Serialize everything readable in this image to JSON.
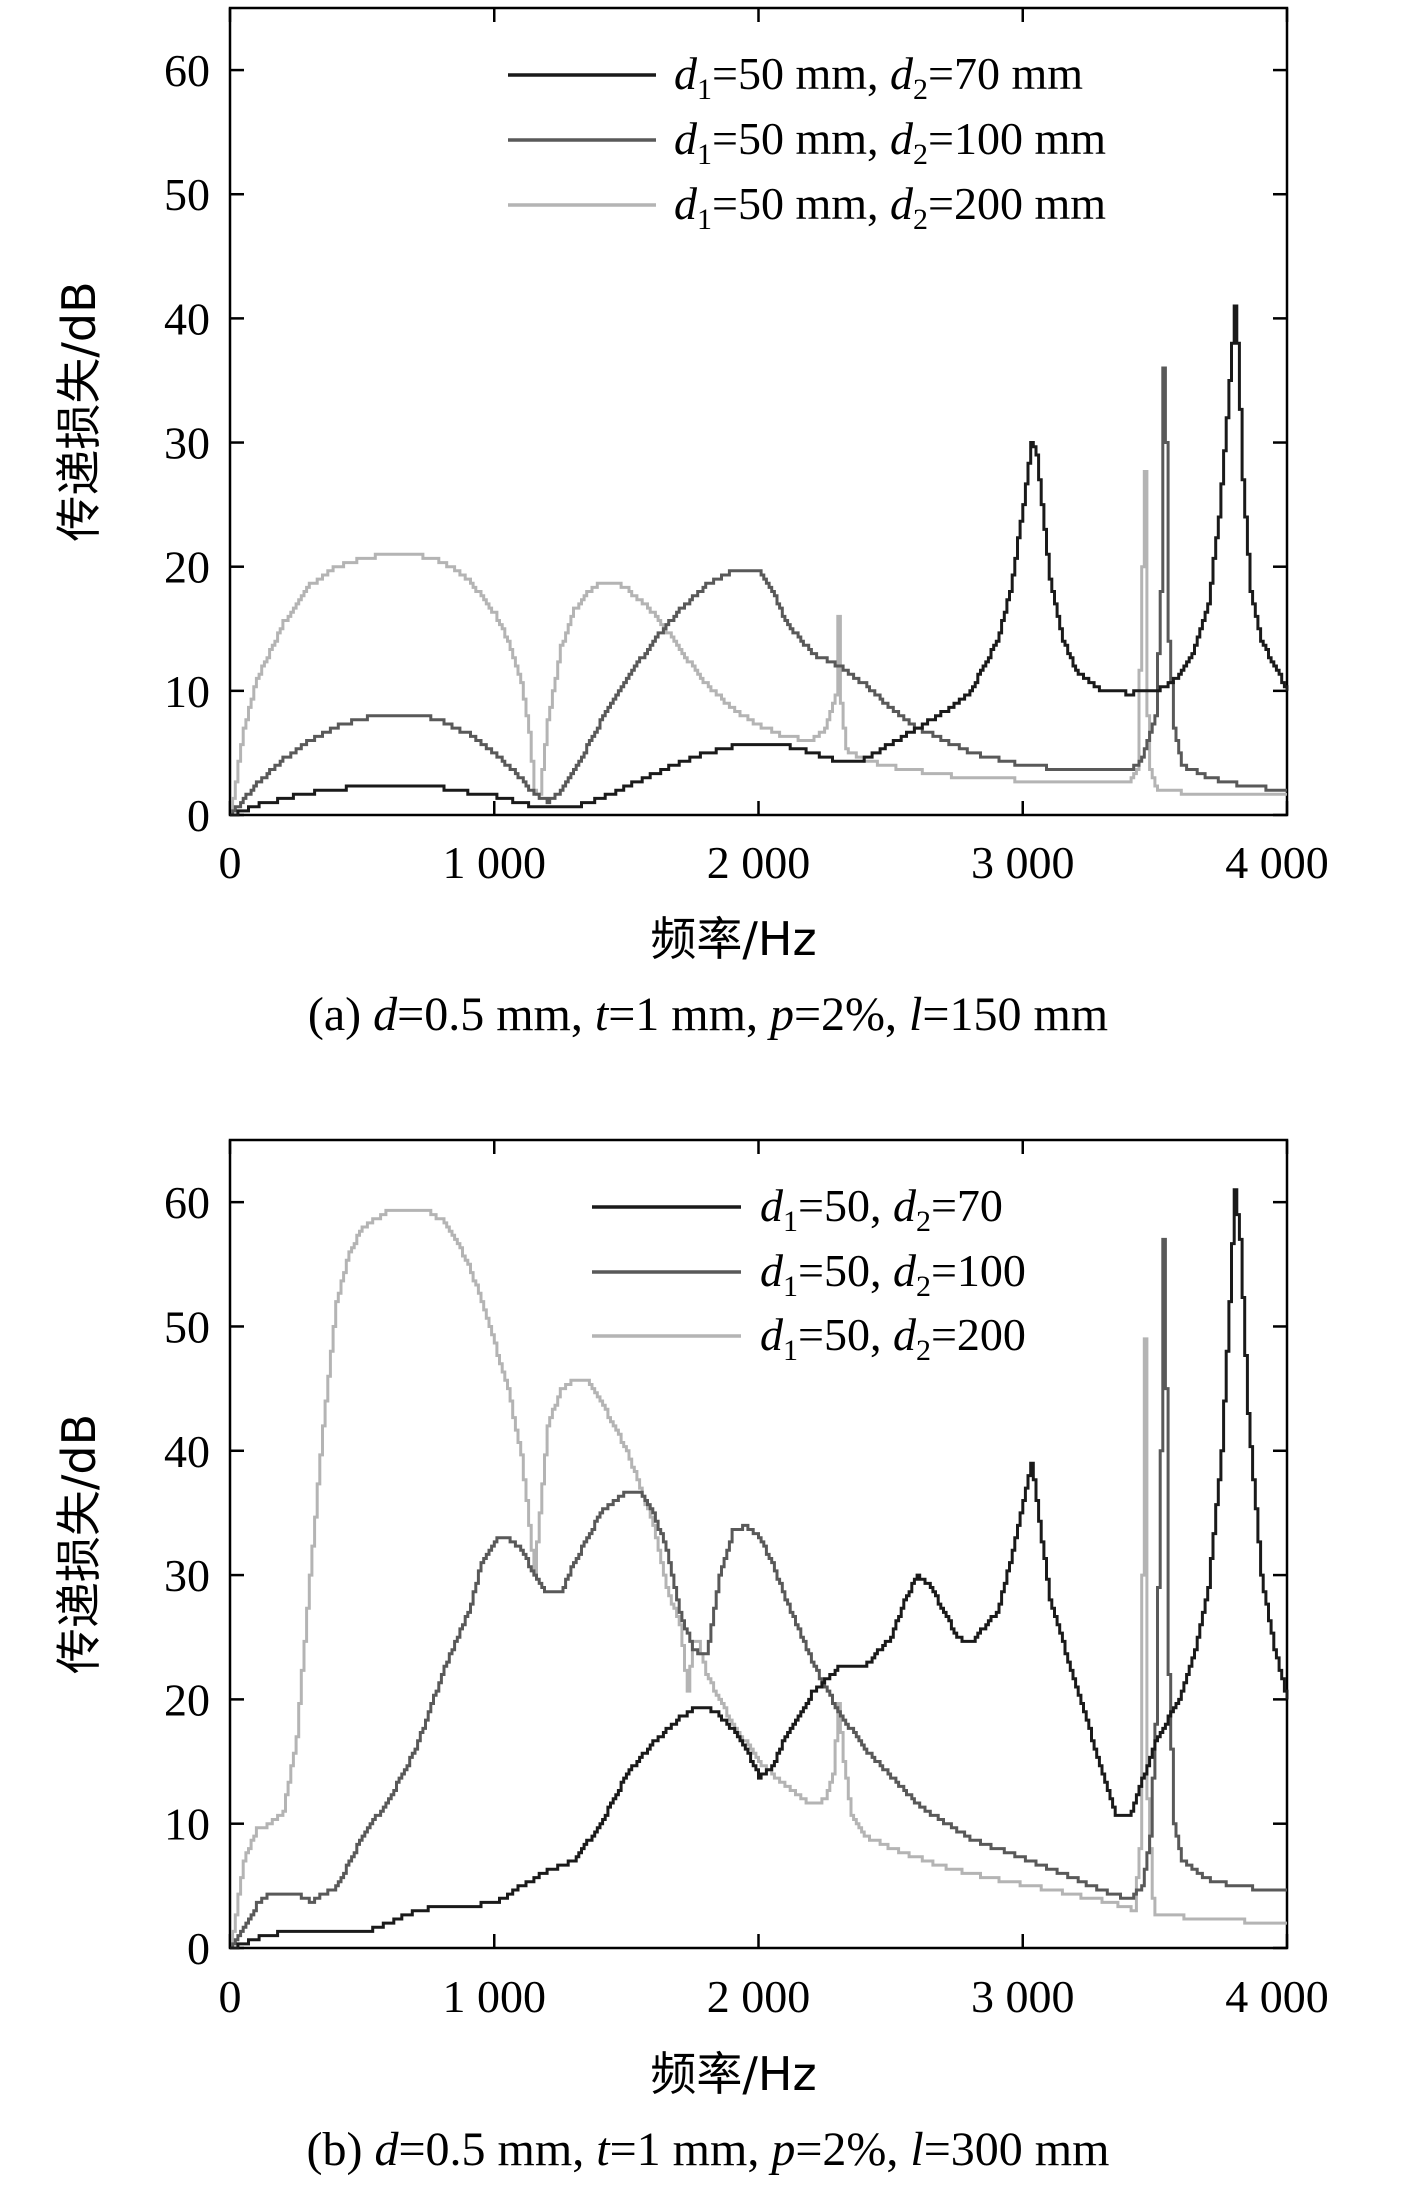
{
  "chart_data": [
    {
      "type": "line",
      "panel": "a",
      "caption": "(a) d=0.5 mm, t=1 mm, p=2%, l=150 mm",
      "caption_parts": [
        {
          "t": "(a) ",
          "i": false
        },
        {
          "t": "d",
          "i": true
        },
        {
          "t": "=0.5 mm, ",
          "i": false
        },
        {
          "t": "t",
          "i": true
        },
        {
          "t": "=1 mm, ",
          "i": false
        },
        {
          "t": "p",
          "i": true
        },
        {
          "t": "=2%, ",
          "i": false
        },
        {
          "t": "l",
          "i": true
        },
        {
          "t": "=150 mm",
          "i": false
        }
      ],
      "xlabel": "频率/Hz",
      "ylabel": "传递损失/dB",
      "xlim": [
        0,
        4000
      ],
      "ylim": [
        0,
        65
      ],
      "xticks": [
        0,
        1000,
        2000,
        3000,
        4000
      ],
      "xtick_labels": [
        "0",
        "1 000",
        "2 000",
        "3 000",
        "4 000"
      ],
      "yticks": [
        0,
        10,
        20,
        30,
        40,
        50,
        60
      ],
      "ytick_labels": [
        "0",
        "10",
        "20",
        "30",
        "40",
        "50",
        "60"
      ],
      "grid": false,
      "legend_position": "top-right",
      "series": [
        {
          "name": "d1=50 mm, d2=70 mm",
          "legend_parts": [
            {
              "t": "d",
              "i": true
            },
            {
              "t": "1",
              "s": true
            },
            {
              "t": "=50 mm, "
            },
            {
              "t": "d",
              "i": true
            },
            {
              "t": "2",
              "s": true
            },
            {
              "t": "=70 mm"
            }
          ],
          "color": "#1a1a1a",
          "x": [
            0,
            100,
            200,
            300,
            400,
            500,
            600,
            700,
            800,
            900,
            1000,
            1100,
            1150,
            1200,
            1250,
            1300,
            1400,
            1500,
            1600,
            1700,
            1800,
            1900,
            2000,
            2100,
            2200,
            2300,
            2400,
            2500,
            2600,
            2700,
            2800,
            2900,
            2950,
            3000,
            3030,
            3050,
            3080,
            3100,
            3150,
            3200,
            3300,
            3400,
            3500,
            3550,
            3600,
            3650,
            3700,
            3740,
            3770,
            3790,
            3800,
            3810,
            3830,
            3860,
            3900,
            3950,
            4000
          ],
          "y": [
            0,
            0.8,
            1.3,
            1.8,
            2.1,
            2.3,
            2.3,
            2.3,
            2.2,
            1.8,
            1.5,
            1.0,
            0.7,
            0.6,
            0.6,
            0.7,
            1.3,
            2.3,
            3.3,
            4.2,
            5.0,
            5.5,
            5.7,
            5.6,
            5.0,
            4.3,
            4.5,
            5.8,
            7.0,
            8.3,
            10.0,
            14.0,
            18.0,
            25.0,
            30.0,
            29.0,
            23.0,
            19.0,
            14.0,
            11.5,
            10.0,
            9.8,
            10.0,
            10.5,
            11.5,
            13.5,
            17.0,
            24.0,
            32.0,
            38.0,
            41.0,
            38.0,
            27.0,
            18.0,
            14.0,
            12.0,
            10.0
          ]
        },
        {
          "name": "d1=50 mm, d2=100 mm",
          "legend_parts": [
            {
              "t": "d",
              "i": true
            },
            {
              "t": "1",
              "s": true
            },
            {
              "t": "=50 mm, "
            },
            {
              "t": "d",
              "i": true
            },
            {
              "t": "2",
              "s": true
            },
            {
              "t": "=100 mm"
            }
          ],
          "color": "#595959",
          "x": [
            0,
            100,
            200,
            300,
            400,
            500,
            600,
            700,
            800,
            900,
            1000,
            1100,
            1150,
            1200,
            1250,
            1300,
            1400,
            1500,
            1600,
            1700,
            1800,
            1900,
            1950,
            2000,
            2050,
            2100,
            2200,
            2300,
            2400,
            2500,
            2600,
            2700,
            2800,
            2900,
            3000,
            3100,
            3200,
            3300,
            3400,
            3450,
            3500,
            3520,
            3530,
            3540,
            3550,
            3570,
            3600,
            3700,
            3800,
            3900,
            4000
          ],
          "y": [
            0,
            2.5,
            4.5,
            6.0,
            7.1,
            7.8,
            8.1,
            8.1,
            7.6,
            6.5,
            4.9,
            2.9,
            1.6,
            1.1,
            2.0,
            3.5,
            7.5,
            11.0,
            14.0,
            16.5,
            18.5,
            19.7,
            19.8,
            19.6,
            18.0,
            15.5,
            13.0,
            12.0,
            10.5,
            8.5,
            7.0,
            6.0,
            5.0,
            4.5,
            4.0,
            3.8,
            3.6,
            3.5,
            3.6,
            4.5,
            8.0,
            18.0,
            36.0,
            30.0,
            14.0,
            7.0,
            4.0,
            3.0,
            2.5,
            2.2,
            2.0
          ]
        },
        {
          "name": "d1=50 mm, d2=200 mm",
          "legend_parts": [
            {
              "t": "d",
              "i": true
            },
            {
              "t": "1",
              "s": true
            },
            {
              "t": "=50 mm, "
            },
            {
              "t": "d",
              "i": true
            },
            {
              "t": "2",
              "s": true
            },
            {
              "t": "=200 mm"
            }
          ],
          "color": "#b4b4b4",
          "x": [
            0,
            50,
            100,
            200,
            300,
            400,
            500,
            600,
            650,
            700,
            800,
            900,
            1000,
            1050,
            1100,
            1130,
            1150,
            1170,
            1200,
            1250,
            1300,
            1350,
            1400,
            1450,
            1500,
            1600,
            1700,
            1800,
            1900,
            2000,
            2100,
            2200,
            2250,
            2290,
            2300,
            2310,
            2330,
            2400,
            2500,
            2700,
            2900,
            3100,
            3300,
            3400,
            3430,
            3450,
            3460,
            3470,
            3480,
            3500,
            3600,
            3800,
            4000
          ],
          "y": [
            0,
            7.0,
            11.0,
            15.5,
            18.5,
            20.0,
            20.7,
            21.0,
            21.0,
            21.0,
            20.4,
            19.0,
            16.2,
            14.0,
            10.5,
            6.5,
            2.0,
            1.5,
            7.5,
            13.5,
            16.5,
            18.0,
            18.8,
            18.7,
            18.2,
            16.3,
            13.3,
            10.5,
            8.5,
            7.2,
            6.3,
            6.0,
            7.0,
            9.5,
            16.0,
            9.0,
            5.2,
            4.4,
            3.9,
            3.2,
            2.9,
            2.7,
            2.5,
            2.5,
            3.5,
            20.0,
            27.8,
            8.0,
            3.5,
            2.2,
            1.8,
            1.6,
            1.5
          ]
        }
      ]
    },
    {
      "type": "line",
      "panel": "b",
      "caption": "(b) d=0.5 mm, t=1 mm, p=2%, l=300 mm",
      "caption_parts": [
        {
          "t": "(b) ",
          "i": false
        },
        {
          "t": "d",
          "i": true
        },
        {
          "t": "=0.5 mm, ",
          "i": false
        },
        {
          "t": "t",
          "i": true
        },
        {
          "t": "=1 mm, ",
          "i": false
        },
        {
          "t": "p",
          "i": true
        },
        {
          "t": "=2%, ",
          "i": false
        },
        {
          "t": "l",
          "i": true
        },
        {
          "t": "=300 mm",
          "i": false
        }
      ],
      "xlabel": "频率/Hz",
      "ylabel": "传递损失/dB",
      "xlim": [
        0,
        4000
      ],
      "ylim": [
        0,
        65
      ],
      "xticks": [
        0,
        1000,
        2000,
        3000,
        4000
      ],
      "xtick_labels": [
        "0",
        "1 000",
        "2 000",
        "3 000",
        "4 000"
      ],
      "yticks": [
        0,
        10,
        20,
        30,
        40,
        50,
        60
      ],
      "ytick_labels": [
        "0",
        "10",
        "20",
        "30",
        "40",
        "50",
        "60"
      ],
      "grid": false,
      "legend_position": "top-right",
      "series": [
        {
          "name": "d1=50, d2=70",
          "legend_parts": [
            {
              "t": "d",
              "i": true
            },
            {
              "t": "1",
              "s": true
            },
            {
              "t": "=50, "
            },
            {
              "t": "d",
              "i": true
            },
            {
              "t": "2",
              "s": true
            },
            {
              "t": "=70"
            }
          ],
          "color": "#1a1a1a",
          "x": [
            0,
            100,
            200,
            300,
            400,
            500,
            600,
            700,
            800,
            900,
            1000,
            1100,
            1200,
            1300,
            1400,
            1500,
            1600,
            1700,
            1750,
            1800,
            1850,
            1900,
            1950,
            2000,
            2050,
            2100,
            2200,
            2300,
            2400,
            2500,
            2550,
            2600,
            2650,
            2700,
            2750,
            2800,
            2900,
            2950,
            3000,
            3030,
            3050,
            3100,
            3200,
            3300,
            3350,
            3400,
            3450,
            3500,
            3600,
            3650,
            3700,
            3750,
            3780,
            3800,
            3820,
            3850,
            3900,
            3950,
            4000
          ],
          "y": [
            0,
            0.8,
            1.3,
            1.3,
            1.2,
            1.2,
            2.0,
            3.0,
            3.4,
            3.4,
            3.6,
            5.0,
            6.2,
            7.0,
            10.0,
            14.0,
            16.5,
            18.5,
            19.3,
            19.4,
            18.7,
            17.5,
            16.0,
            13.8,
            14.5,
            17.0,
            20.5,
            22.5,
            22.7,
            25.0,
            28.0,
            30.0,
            29.0,
            27.0,
            25.0,
            24.5,
            27.0,
            31.0,
            36.0,
            39.0,
            36.0,
            28.0,
            21.0,
            14.0,
            10.5,
            10.5,
            13.5,
            16.5,
            20.5,
            24.0,
            29.0,
            40.0,
            52.0,
            61.0,
            57.0,
            43.0,
            30.0,
            24.0,
            20.0
          ]
        },
        {
          "name": "d1=50, d2=100",
          "legend_parts": [
            {
              "t": "d",
              "i": true
            },
            {
              "t": "1",
              "s": true
            },
            {
              "t": "=50, "
            },
            {
              "t": "d",
              "i": true
            },
            {
              "t": "2",
              "s": true
            },
            {
              "t": "=100"
            }
          ],
          "color": "#595959",
          "x": [
            0,
            100,
            150,
            200,
            250,
            300,
            400,
            500,
            600,
            700,
            800,
            900,
            950,
            1000,
            1050,
            1100,
            1150,
            1200,
            1250,
            1300,
            1400,
            1500,
            1550,
            1600,
            1650,
            1700,
            1750,
            1800,
            1850,
            1900,
            1950,
            2000,
            2050,
            2100,
            2200,
            2300,
            2400,
            2600,
            2800,
            3000,
            3200,
            3300,
            3400,
            3450,
            3480,
            3500,
            3520,
            3530,
            3540,
            3550,
            3570,
            3600,
            3700,
            3800,
            4000
          ],
          "y": [
            0,
            3.5,
            4.4,
            4.4,
            4.4,
            3.7,
            4.9,
            9.0,
            12.0,
            16.0,
            22.0,
            27.0,
            31.0,
            32.8,
            33.0,
            32.0,
            30.0,
            28.5,
            28.5,
            31.0,
            35.0,
            36.8,
            36.5,
            35.0,
            32.0,
            27.0,
            24.0,
            23.5,
            30.0,
            33.5,
            34.0,
            33.0,
            31.0,
            28.0,
            23.0,
            19.0,
            16.0,
            11.5,
            8.8,
            7.2,
            5.5,
            4.6,
            3.9,
            5.0,
            9.0,
            18.0,
            40.0,
            57.0,
            45.0,
            22.0,
            10.0,
            7.0,
            5.5,
            5.0,
            4.5
          ]
        },
        {
          "name": "d1=50, d2=200",
          "legend_parts": [
            {
              "t": "d",
              "i": true
            },
            {
              "t": "1",
              "s": true
            },
            {
              "t": "=50, "
            },
            {
              "t": "d",
              "i": true
            },
            {
              "t": "2",
              "s": true
            },
            {
              "t": "=200"
            }
          ],
          "color": "#b4b4b4",
          "x": [
            0,
            50,
            100,
            150,
            200,
            250,
            300,
            350,
            400,
            450,
            500,
            600,
            700,
            750,
            800,
            850,
            900,
            950,
            1000,
            1050,
            1100,
            1130,
            1150,
            1170,
            1200,
            1250,
            1300,
            1350,
            1400,
            1450,
            1500,
            1550,
            1600,
            1650,
            1700,
            1730,
            1750,
            1770,
            1800,
            1900,
            2000,
            2100,
            2200,
            2250,
            2280,
            2300,
            2320,
            2350,
            2400,
            2500,
            2700,
            2900,
            3100,
            3300,
            3420,
            3440,
            3450,
            3460,
            3470,
            3490,
            3500,
            3600,
            3800,
            4000
          ],
          "y": [
            0,
            7.0,
            9.5,
            10.0,
            11.0,
            17.0,
            30.0,
            42.0,
            52.0,
            56.0,
            58.0,
            59.3,
            59.4,
            59.3,
            58.5,
            57.0,
            55.0,
            52.0,
            48.5,
            45.0,
            39.5,
            34.0,
            30.0,
            35.0,
            42.0,
            45.0,
            45.8,
            45.5,
            44.0,
            42.0,
            40.0,
            37.0,
            34.0,
            29.0,
            26.0,
            20.5,
            24.5,
            24.5,
            22.0,
            18.0,
            15.0,
            13.0,
            11.5,
            12.0,
            14.0,
            19.5,
            15.0,
            10.5,
            9.0,
            8.0,
            6.5,
            5.5,
            4.7,
            3.8,
            3.1,
            8.0,
            30.0,
            49.0,
            12.0,
            4.0,
            2.8,
            2.5,
            2.2,
            2.0
          ]
        }
      ]
    }
  ]
}
